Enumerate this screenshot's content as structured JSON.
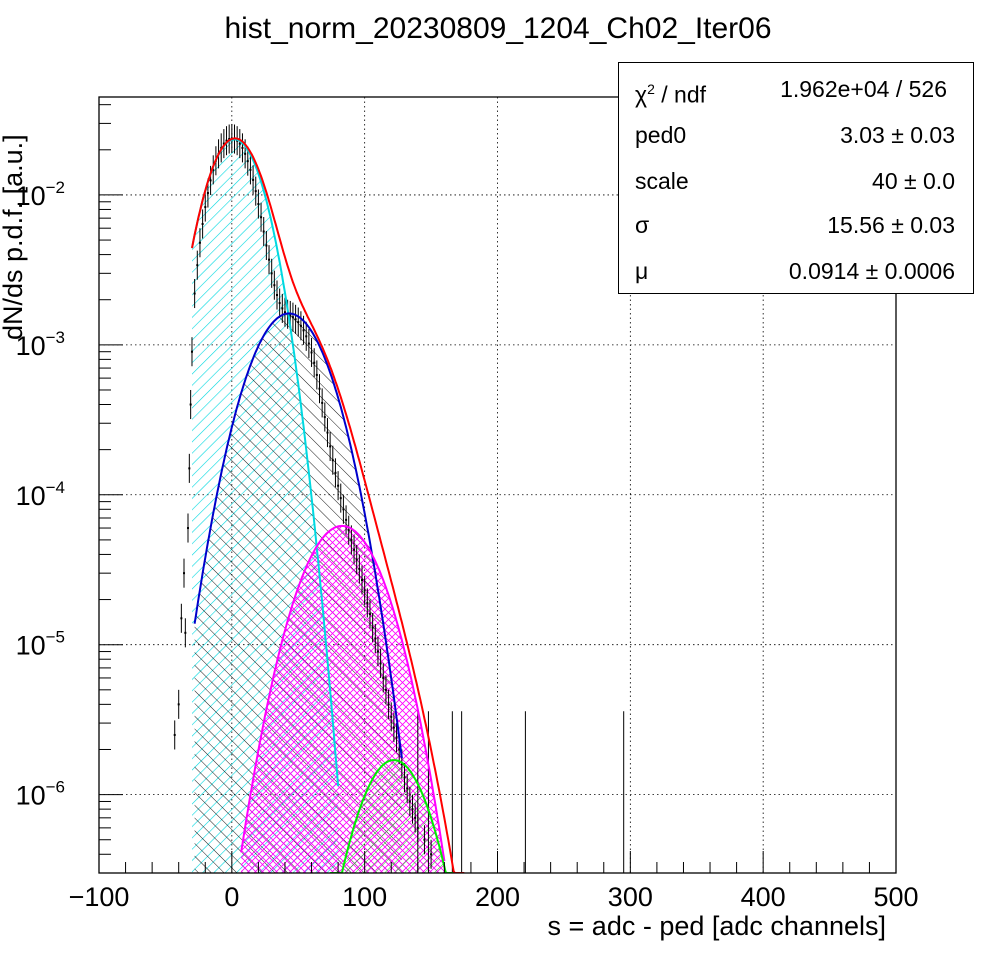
{
  "chart_data": {
    "type": "histogram-fit",
    "title": "hist_norm_20230809_1204_Ch02_Iter06",
    "xlabel": "s = adc - ped [adc channels]",
    "ylabel": "dN/ds p.d.f. [a.u.]",
    "xlim": [
      -100,
      500
    ],
    "ylim": [
      3e-07,
      0.045
    ],
    "yscale": "log",
    "grid": true,
    "x_ticks": [
      -100,
      0,
      100,
      200,
      300,
      400,
      500
    ],
    "y_ticks": [
      {
        "value": 1e-06,
        "label_base": "10",
        "label_exp": "−6"
      },
      {
        "value": 1e-05,
        "label_base": "10",
        "label_exp": "−5"
      },
      {
        "value": 0.0001,
        "label_base": "10",
        "label_exp": "−4"
      },
      {
        "value": 0.001,
        "label_base": "10",
        "label_exp": "−3"
      },
      {
        "value": 0.01,
        "label_base": "10",
        "label_exp": "−2"
      }
    ],
    "components": [
      {
        "color": "#00d8e0",
        "hatch": "cyan",
        "peak_x": 2,
        "peak_y": 0.0235,
        "sigma": 17.5,
        "x_range": [
          -30,
          80
        ]
      },
      {
        "color": "#0000cc",
        "hatch": "black",
        "peak_x": 43,
        "peak_y": 0.00162,
        "sigma": 23,
        "x_range": [
          -28,
          128
        ]
      },
      {
        "color": "#ff00ff",
        "hatch": "magenta",
        "peak_x": 83,
        "peak_y": 6.2e-05,
        "sigma": 24,
        "x_range": [
          7,
          160
        ]
      },
      {
        "color": "#00ee00",
        "hatch": "green",
        "peak_x": 122,
        "peak_y": 1.7e-06,
        "sigma": 21,
        "x_range": [
          74,
          172
        ]
      }
    ],
    "total_fit": {
      "color": "#ff0000",
      "x_range": [
        -30,
        175
      ]
    },
    "data_color": "#000000",
    "data_points": [
      [
        -43,
        2.5e-06
      ],
      [
        -40,
        4e-06
      ],
      [
        -38,
        1.5e-05
      ],
      [
        -36,
        3e-05
      ],
      [
        -35,
        1.2e-05
      ],
      [
        -33,
        6e-05
      ],
      [
        -32,
        0.00015
      ],
      [
        -31,
        0.0004
      ],
      [
        -30,
        0.0009
      ],
      [
        -28,
        0.0022
      ],
      [
        -26,
        0.0034
      ],
      [
        -24,
        0.0048
      ],
      [
        -22,
        0.0064
      ],
      [
        -20,
        0.0083
      ],
      [
        -18,
        0.0103
      ],
      [
        -16,
        0.0125
      ],
      [
        -14,
        0.0147
      ],
      [
        -12,
        0.0169
      ],
      [
        -10,
        0.0188
      ],
      [
        -8,
        0.0206
      ],
      [
        -6,
        0.022
      ],
      [
        -4,
        0.023
      ],
      [
        -2,
        0.0236
      ],
      [
        0,
        0.0238
      ],
      [
        2,
        0.0236
      ],
      [
        4,
        0.023
      ],
      [
        6,
        0.022
      ],
      [
        8,
        0.0206
      ],
      [
        10,
        0.0188
      ],
      [
        12,
        0.0168
      ],
      [
        14,
        0.0147
      ],
      [
        16,
        0.0126
      ],
      [
        18,
        0.0106
      ],
      [
        20,
        0.0087
      ],
      [
        22,
        0.0071
      ],
      [
        24,
        0.0057
      ],
      [
        26,
        0.0046
      ],
      [
        28,
        0.0037
      ],
      [
        30,
        0.003
      ],
      [
        32,
        0.0025
      ],
      [
        34,
        0.00215
      ],
      [
        36,
        0.0019
      ],
      [
        38,
        0.00175
      ],
      [
        40,
        0.00165
      ],
      [
        42,
        0.0016
      ],
      [
        44,
        0.00157
      ],
      [
        46,
        0.00153
      ],
      [
        48,
        0.00148
      ],
      [
        50,
        0.00142
      ],
      [
        52,
        0.00134
      ],
      [
        54,
        0.00125
      ],
      [
        56,
        0.00114
      ],
      [
        58,
        0.00102
      ],
      [
        60,
        0.00089
      ],
      [
        62,
        0.00076
      ],
      [
        64,
        0.00063
      ],
      [
        66,
        0.00051
      ],
      [
        68,
        0.00041
      ],
      [
        70,
        0.00033
      ],
      [
        72,
        0.00026
      ],
      [
        74,
        0.00021
      ],
      [
        76,
        0.00017
      ],
      [
        78,
        0.00014
      ],
      [
        80,
        0.000115
      ],
      [
        82,
        9.5e-05
      ],
      [
        84,
        8e-05
      ],
      [
        86,
        6.8e-05
      ],
      [
        88,
        5.8e-05
      ],
      [
        90,
        5e-05
      ],
      [
        92,
        4.3e-05
      ],
      [
        94,
        3.7e-05
      ],
      [
        96,
        3.2e-05
      ],
      [
        98,
        2.7e-05
      ],
      [
        100,
        2.3e-05
      ],
      [
        102,
        1.9e-05
      ],
      [
        104,
        1.6e-05
      ],
      [
        106,
        1.3e-05
      ],
      [
        108,
        1.1e-05
      ],
      [
        110,
        9e-06
      ],
      [
        112,
        7.5e-06
      ],
      [
        114,
        6e-06
      ],
      [
        116,
        5e-06
      ],
      [
        118,
        4e-06
      ],
      [
        120,
        3.3e-06
      ],
      [
        122,
        2.8e-06
      ],
      [
        124,
        2.4e-06
      ],
      [
        126,
        2e-06
      ],
      [
        128,
        1.6e-06
      ],
      [
        130,
        1.3e-06
      ],
      [
        132,
        1.1e-06
      ],
      [
        134,
        9e-07
      ],
      [
        136,
        8e-07
      ],
      [
        138,
        7e-07
      ],
      [
        140,
        6e-07
      ],
      [
        145,
        5e-07
      ],
      [
        150,
        4e-07
      ]
    ],
    "sparse_points": [
      [
        140,
        3.6e-06
      ],
      [
        148,
        3.6e-06
      ],
      [
        166,
        3.6e-06
      ],
      [
        173,
        3.6e-06
      ],
      [
        221,
        3.6e-06
      ],
      [
        295,
        3.6e-06
      ]
    ]
  },
  "stats": {
    "rows": [
      {
        "key_base": "χ",
        "key_sup": "2",
        "key_rest": " / ndf",
        "value": "1.962e+04 / 526"
      },
      {
        "key": "ped0",
        "value": "3.03 ± 0.03"
      },
      {
        "key": "scale",
        "value": "40 ± 0.0"
      },
      {
        "key": "σ",
        "value": "15.56 ± 0.03"
      },
      {
        "key": "μ",
        "value": "0.0914 ± 0.0006"
      }
    ]
  },
  "colors": {
    "cyan": "#00d8e0",
    "blue": "#0000cc",
    "magenta": "#ff00ff",
    "green": "#00ee00",
    "red": "#ff0000",
    "grid": "#000000"
  }
}
